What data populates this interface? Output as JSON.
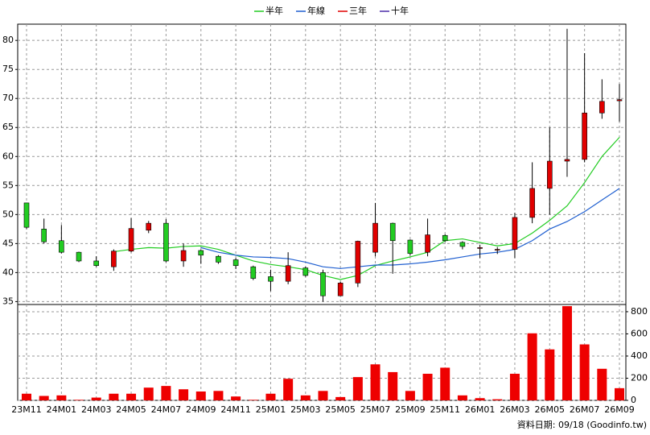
{
  "chart_data": {
    "type": "candlestick",
    "categories": [
      "23M11",
      null,
      "24M01",
      null,
      "24M03",
      null,
      "24M05",
      null,
      "24M07",
      null,
      "24M09",
      null,
      "24M11",
      null,
      "25M01",
      null,
      "25M03",
      null,
      "25M05",
      null,
      "25M07",
      null,
      "25M09",
      null,
      "25M11",
      null,
      "26M01",
      null,
      "26M03",
      null,
      "26M05",
      null,
      "26M07",
      null,
      "26M09"
    ],
    "open": [
      52,
      47.5,
      45.5,
      43.5,
      42,
      41,
      43.7,
      47.3,
      48.5,
      42,
      43.8,
      42.8,
      42.2,
      41,
      39.3,
      38.5,
      40.8,
      40,
      36,
      38.2,
      43.5,
      48.5,
      45.6,
      43.5,
      46.4,
      45.2,
      44.2,
      43.9,
      44,
      49.5,
      54.5,
      59.2,
      59.5,
      67.5,
      69.6
    ],
    "high": [
      52,
      49.3,
      48.2,
      43.6,
      42.8,
      44,
      49.4,
      48.9,
      49.2,
      45,
      44,
      43,
      42.5,
      41.2,
      40.5,
      43.5,
      41,
      40.5,
      38.4,
      45.5,
      52,
      48.6,
      45.7,
      49.3,
      46.6,
      45.4,
      44.8,
      44.4,
      50.3,
      59,
      65,
      82,
      77.8,
      73.3,
      72.5
    ],
    "low": [
      47.5,
      45,
      43.3,
      41.8,
      41,
      40.3,
      43.5,
      46.8,
      41.8,
      41,
      41.5,
      41.5,
      40.6,
      38.7,
      36.8,
      38,
      39.3,
      35,
      36,
      37.5,
      42.8,
      39.8,
      42.9,
      42.8,
      45.3,
      44,
      42.5,
      43.2,
      42.5,
      48.5,
      50,
      56.5,
      59,
      66.5,
      66
    ],
    "close": [
      47.8,
      45.3,
      43.5,
      42,
      41.2,
      43.7,
      47.6,
      48.5,
      42,
      43.8,
      43,
      41.8,
      41.2,
      39,
      38.5,
      41.2,
      39.5,
      36,
      38.2,
      45.4,
      48.5,
      45.5,
      43.3,
      46.5,
      45.5,
      44.5,
      44.3,
      44,
      49.5,
      54.5,
      59.2,
      59.5,
      67.5,
      69.5,
      69.8
    ],
    "up_color": "#e00000",
    "down_color": "#22cc22",
    "series": [
      {
        "name": "半年",
        "color": "#22cc22",
        "values": [
          null,
          null,
          null,
          null,
          null,
          43.6,
          44,
          44.3,
          44.2,
          44.5,
          44.6,
          44,
          43,
          42,
          41.4,
          41,
          40.5,
          39.5,
          38.8,
          39.5,
          41.2,
          42,
          42.7,
          43.5,
          45.5,
          45.8,
          45.2,
          44.6,
          45,
          46.8,
          49,
          51.5,
          55.5,
          60,
          63.3
        ]
      },
      {
        "name": "年線",
        "color": "#1f5fd0",
        "values": [
          null,
          null,
          null,
          null,
          null,
          null,
          null,
          null,
          null,
          null,
          44.3,
          43.5,
          43,
          42.7,
          42.6,
          42.4,
          41.8,
          41,
          40.7,
          41,
          41.3,
          41.3,
          41.5,
          41.8,
          42.2,
          42.7,
          43.2,
          43.5,
          44,
          45.5,
          47.5,
          48.8,
          50.5,
          52.5,
          54.5
        ]
      },
      {
        "name": "三年",
        "color": "#e00000",
        "values": [
          null,
          null,
          null,
          null,
          null,
          null,
          null,
          null,
          null,
          null,
          null,
          null,
          null,
          null,
          null,
          null,
          null,
          null,
          null,
          null,
          null,
          null,
          null,
          null,
          null,
          null,
          null,
          null,
          null,
          null,
          null,
          null,
          null,
          null,
          null
        ]
      },
      {
        "name": "十年",
        "color": "#4b2ca8",
        "values": [
          null,
          null,
          null,
          null,
          null,
          null,
          null,
          null,
          null,
          null,
          null,
          null,
          null,
          null,
          null,
          null,
          null,
          null,
          null,
          null,
          null,
          null,
          null,
          null,
          null,
          null,
          null,
          null,
          null,
          null,
          null,
          null,
          null,
          null,
          null
        ]
      }
    ],
    "ylim": [
      34.5,
      82.8
    ],
    "yticks": [
      35,
      40,
      45,
      50,
      55,
      60,
      65,
      70,
      75,
      80
    ],
    "volume": {
      "color": "#ee0000",
      "ylim": [
        0,
        865
      ],
      "yticks": [
        0,
        200,
        400,
        600,
        800
      ],
      "values": [
        60,
        40,
        45,
        5,
        25,
        60,
        60,
        115,
        130,
        100,
        80,
        85,
        35,
        5,
        60,
        195,
        45,
        85,
        30,
        210,
        325,
        255,
        85,
        240,
        295,
        45,
        20,
        10,
        240,
        605,
        460,
        850,
        505,
        285,
        110
      ]
    },
    "grid": true,
    "footer": "資料日期: 09/18 (Goodinfo.tw)"
  }
}
